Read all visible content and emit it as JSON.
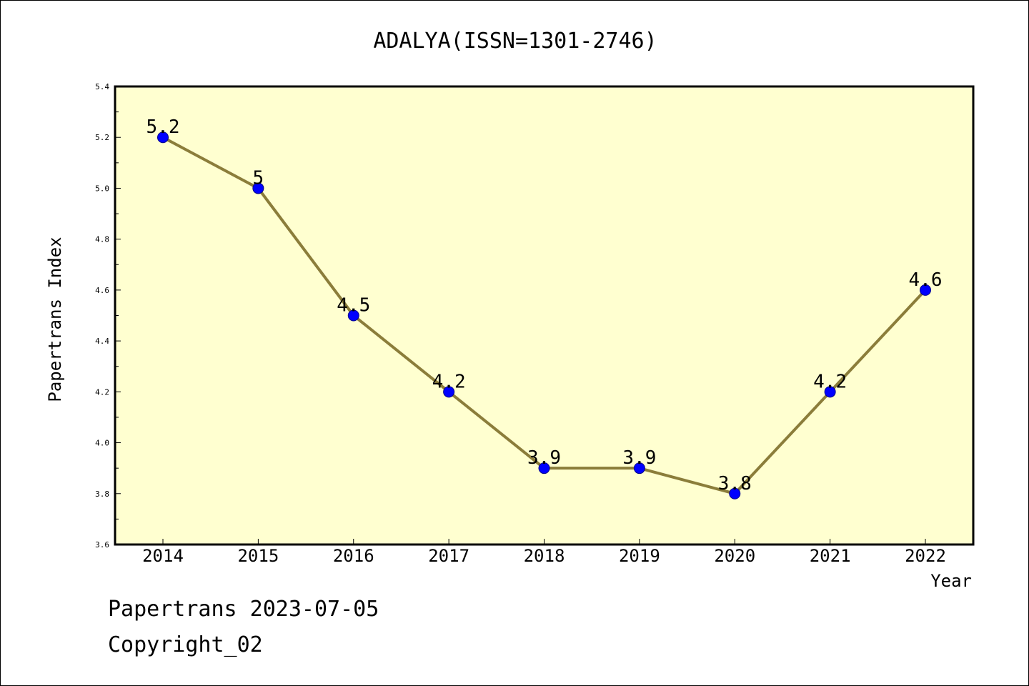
{
  "chart_data": {
    "type": "line",
    "title": "ADALYA(ISSN=1301-2746)",
    "xlabel": "Year",
    "ylabel": "Papertrans Index",
    "categories": [
      "2014",
      "2015",
      "2016",
      "2017",
      "2018",
      "2019",
      "2020",
      "2021",
      "2022"
    ],
    "series": [
      {
        "values": [
          5.2,
          5.0,
          4.5,
          4.2,
          3.9,
          3.9,
          3.8,
          4.2,
          4.6
        ],
        "data_labels": [
          "5.2",
          "5",
          "4.5",
          "4.2",
          "3.9",
          "3.9",
          "3.8",
          "4.2",
          "4.6"
        ],
        "line_color": "#8b7d3a",
        "marker_color": "#0000ff"
      }
    ],
    "ylim": [
      3.6,
      5.4
    ],
    "yticks": [
      "3.6",
      "3.8",
      "4.0",
      "4.2",
      "4.4",
      "4.6",
      "4.8",
      "5.0",
      "5.2",
      "5.4"
    ],
    "plot_background": "#ffffd0",
    "grid": false,
    "legend": "none"
  },
  "footer": {
    "source_line": "Papertrans 2023-07-05",
    "copyright_line": "Copyright_02"
  }
}
